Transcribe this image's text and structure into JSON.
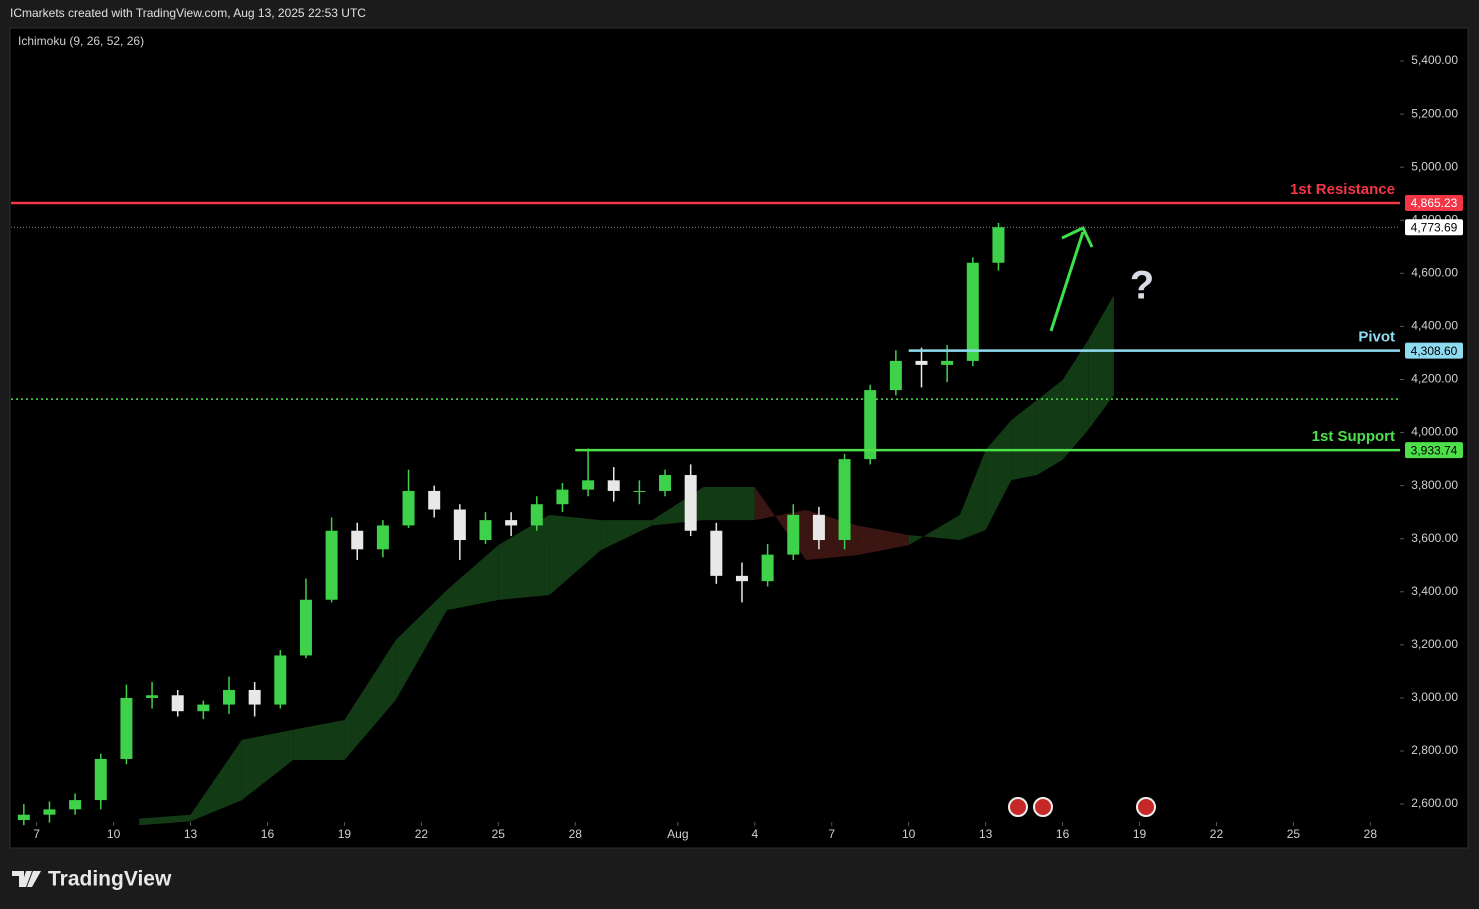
{
  "header": "ICmarkets created with TradingView.com, Aug 13, 2025 22:53 UTC",
  "footer": "TradingView",
  "chart_data": {
    "type": "candlestick",
    "indicator": "Ichimoku (9, 26, 52, 26)",
    "x": [
      "2025-07-06",
      "2025-07-07",
      "2025-07-08",
      "2025-07-09",
      "2025-07-10",
      "2025-07-11",
      "2025-07-12",
      "2025-07-13",
      "2025-07-14",
      "2025-07-15",
      "2025-07-16",
      "2025-07-17",
      "2025-07-18",
      "2025-07-19",
      "2025-07-20",
      "2025-07-21",
      "2025-07-22",
      "2025-07-23",
      "2025-07-24",
      "2025-07-25",
      "2025-07-26",
      "2025-07-27",
      "2025-07-28",
      "2025-07-29",
      "2025-07-30",
      "2025-07-31",
      "2025-08-01",
      "2025-08-02",
      "2025-08-03",
      "2025-08-04",
      "2025-08-05",
      "2025-08-06",
      "2025-08-07",
      "2025-08-08",
      "2025-08-09",
      "2025-08-10",
      "2025-08-11",
      "2025-08-12",
      "2025-08-13"
    ],
    "open": [
      2540,
      2560,
      2580,
      2615,
      2770,
      3000,
      3010,
      2950,
      2975,
      3030,
      2975,
      3160,
      3370,
      3630,
      3560,
      3650,
      3780,
      3710,
      3595,
      3670,
      3650,
      3730,
      3785,
      3820,
      3780,
      3780,
      3840,
      3630,
      3460,
      3440,
      3540,
      3690,
      3595,
      3900,
      4160,
      4270,
      4255,
      4270,
      4640
    ],
    "high": [
      2600,
      2610,
      2640,
      2790,
      3050,
      3060,
      3030,
      2990,
      3080,
      3060,
      3180,
      3450,
      3680,
      3660,
      3670,
      3860,
      3800,
      3730,
      3700,
      3700,
      3760,
      3810,
      3940,
      3870,
      3820,
      3860,
      3880,
      3660,
      3510,
      3580,
      3730,
      3720,
      3920,
      4180,
      4310,
      4320,
      4330,
      4660,
      4790
    ],
    "low": [
      2520,
      2530,
      2560,
      2580,
      2750,
      2960,
      2930,
      2920,
      2940,
      2930,
      2960,
      3150,
      3360,
      3520,
      3530,
      3640,
      3680,
      3520,
      3580,
      3610,
      3630,
      3700,
      3760,
      3740,
      3730,
      3760,
      3610,
      3430,
      3360,
      3420,
      3520,
      3560,
      3560,
      3880,
      4140,
      4170,
      4190,
      4250,
      4610
    ],
    "close": [
      2560,
      2580,
      2615,
      2770,
      3000,
      3010,
      2950,
      2975,
      3030,
      2975,
      3160,
      3370,
      3630,
      3560,
      3650,
      3780,
      3710,
      3595,
      3670,
      3650,
      3730,
      3785,
      3820,
      3780,
      3780,
      3840,
      3630,
      3460,
      3440,
      3540,
      3690,
      3595,
      3900,
      4160,
      4270,
      4255,
      4270,
      4640,
      4773.69
    ],
    "up_color": "#3fd14a",
    "down_color": "#e8e8e8",
    "cloud": {
      "x": [
        "2025-07-11",
        "2025-07-13",
        "2025-07-15",
        "2025-07-17",
        "2025-07-19",
        "2025-07-21",
        "2025-07-23",
        "2025-07-25",
        "2025-07-27",
        "2025-07-29",
        "2025-07-31",
        "2025-08-02",
        "2025-08-04",
        "2025-08-06",
        "2025-08-08",
        "2025-08-10",
        "2025-08-12",
        "2025-08-13",
        "2025-08-14",
        "2025-08-15",
        "2025-08-16",
        "2025-08-17",
        "2025-08-18"
      ],
      "leading_span_a": [
        2545,
        2560,
        2842,
        2880,
        2917,
        3218,
        3407,
        3576,
        3690,
        3670,
        3670,
        3795,
        3795,
        3520,
        3538,
        3576,
        3690,
        3934,
        4047,
        4122,
        4198,
        4349,
        4518
      ],
      "leading_span_b": [
        2520,
        2535,
        2615,
        2766,
        2766,
        2992,
        3331,
        3369,
        3388,
        3557,
        3650,
        3670,
        3670,
        3708,
        3650,
        3614,
        3595,
        3633,
        3821,
        3840,
        3897,
        4010,
        4141
      ],
      "bull_color": "#123a14",
      "bear_color": "#3a1512"
    },
    "levels": [
      {
        "label": "1st Resistance",
        "value": 4865.23,
        "value_label": "4,865.23",
        "color": "#f23645"
      },
      {
        "label": "Pivot",
        "value": 4308.6,
        "value_label": "4,308.60",
        "color": "#8fdcf0",
        "start": "2025-08-10"
      },
      {
        "label": "1st Support",
        "value": 3933.74,
        "value_label": "3,933.74",
        "color": "#4ee04a",
        "start": "2025-07-28"
      }
    ],
    "current_price": {
      "value": 4773.69,
      "label": "4,773.69"
    },
    "reference_line": {
      "value": 4126,
      "color": "#4ee04a"
    },
    "annotation": "?",
    "xlim": [
      "2025-07-06",
      "2025-08-29"
    ],
    "xticks": [
      {
        "value": "2025-07-07",
        "label": "7"
      },
      {
        "value": "2025-07-10",
        "label": "10"
      },
      {
        "value": "2025-07-13",
        "label": "13"
      },
      {
        "value": "2025-07-16",
        "label": "16"
      },
      {
        "value": "2025-07-19",
        "label": "19"
      },
      {
        "value": "2025-07-22",
        "label": "22"
      },
      {
        "value": "2025-07-25",
        "label": "25"
      },
      {
        "value": "2025-07-28",
        "label": "28"
      },
      {
        "value": "2025-08-01",
        "label": "Aug"
      },
      {
        "value": "2025-08-04",
        "label": "4"
      },
      {
        "value": "2025-08-07",
        "label": "7"
      },
      {
        "value": "2025-08-10",
        "label": "10"
      },
      {
        "value": "2025-08-13",
        "label": "13"
      },
      {
        "value": "2025-08-16",
        "label": "16"
      },
      {
        "value": "2025-08-19",
        "label": "19"
      },
      {
        "value": "2025-08-22",
        "label": "22"
      },
      {
        "value": "2025-08-25",
        "label": "25"
      },
      {
        "value": "2025-08-28",
        "label": "28"
      }
    ],
    "ylim": [
      2540,
      5517
    ],
    "yticks": [
      {
        "value": 2600,
        "label": "2,600.00"
      },
      {
        "value": 2800,
        "label": "2,800.00"
      },
      {
        "value": 3000,
        "label": "3,000.00"
      },
      {
        "value": 3200,
        "label": "3,200.00"
      },
      {
        "value": 3400,
        "label": "3,400.00"
      },
      {
        "value": 3600,
        "label": "3,600.00"
      },
      {
        "value": 3800,
        "label": "3,800.00"
      },
      {
        "value": 4000,
        "label": "4,000.00"
      },
      {
        "value": 4200,
        "label": "4,200.00"
      },
      {
        "value": 4400,
        "label": "4,400.00"
      },
      {
        "value": 4600,
        "label": "4,600.00"
      },
      {
        "value": 4800,
        "label": "4,800.00"
      },
      {
        "value": 5000,
        "label": "5,000.00"
      },
      {
        "value": 5200,
        "label": "5,200.00"
      },
      {
        "value": 5400,
        "label": "5,400.00"
      }
    ],
    "grid": false
  }
}
